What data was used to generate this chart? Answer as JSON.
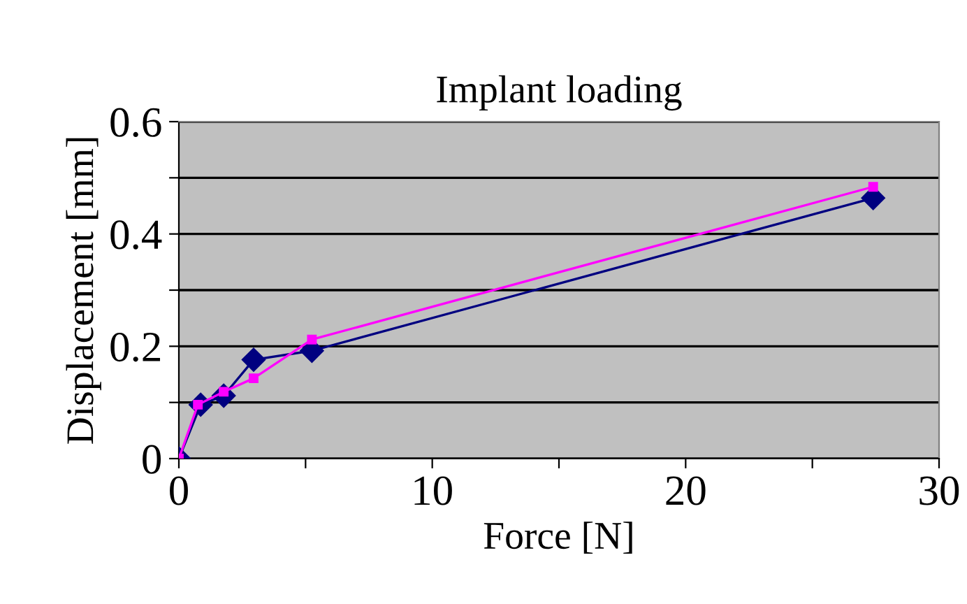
{
  "chart_data": {
    "type": "line",
    "title": "Implant loading",
    "xlabel": "Force [N]",
    "ylabel": "Displacement [mm]",
    "xlim": [
      0,
      30
    ],
    "xticks": [
      0,
      {
        "value": 5,
        "label": null
      },
      10,
      {
        "value": 15,
        "label": null
      },
      20,
      {
        "value": 25,
        "label": null
      },
      30
    ],
    "ylim": [
      0,
      0.6
    ],
    "yticks": [
      0,
      {
        "value": 0.1,
        "label": null
      },
      0.2,
      {
        "value": 0.3,
        "label": null
      },
      0.4,
      {
        "value": 0.5,
        "label": null
      },
      0.6
    ],
    "grid": "y",
    "series": [
      {
        "color": "#000080",
        "marker": "diamond",
        "x": [
          0,
          0.86,
          1.77,
          2.95,
          5.25,
          27.4
        ],
        "values": [
          0,
          0.096,
          0.112,
          0.176,
          0.192,
          0.464
        ]
      },
      {
        "color": "#ff00ff",
        "marker": "square",
        "x": [
          0,
          0.75,
          1.77,
          2.95,
          5.25,
          27.4
        ],
        "values": [
          0,
          0.096,
          0.119,
          0.143,
          0.212,
          0.484
        ]
      }
    ]
  }
}
